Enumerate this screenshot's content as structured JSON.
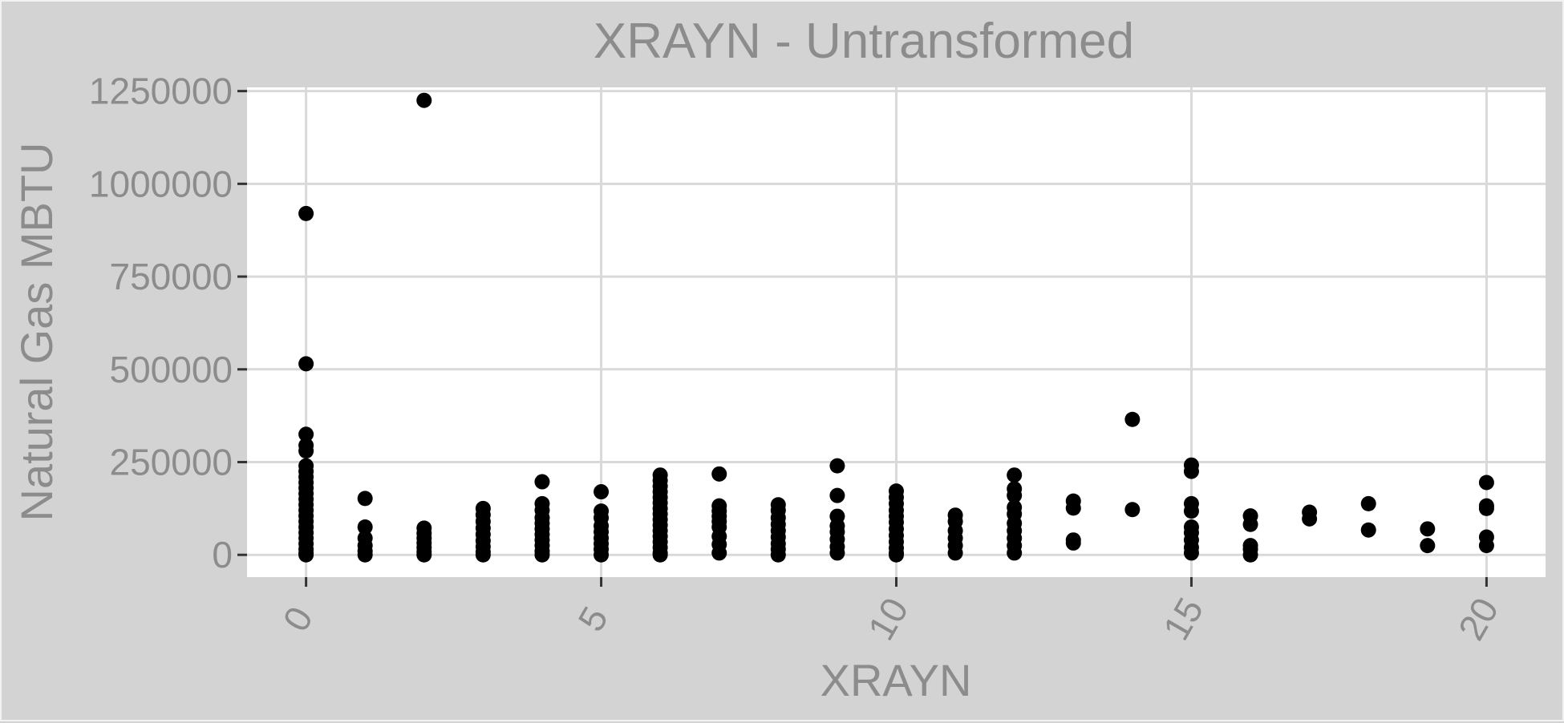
{
  "chart_data": {
    "type": "scatter",
    "title": "XRAYN - Untransformed",
    "xlabel": "XRAYN",
    "ylabel": "Natural Gas MBTU",
    "xlim": [
      -1,
      21
    ],
    "ylim": [
      -60000,
      1260000
    ],
    "xticks": [
      0,
      5,
      10,
      15,
      20
    ],
    "yticks": [
      0,
      250000,
      500000,
      750000,
      1000000,
      1250000
    ],
    "xtick_labels": [
      "0",
      "5",
      "10",
      "15",
      "20"
    ],
    "ytick_labels": [
      "0",
      "250000",
      "500000",
      "750000",
      "1000000",
      "1250000"
    ],
    "grid": true,
    "legend": "none",
    "colors": {
      "background": "#d3d3d3",
      "panel": "#ffffff",
      "grid": "#d9d9d9",
      "point": "#000000",
      "text": "#8c8c8c"
    },
    "points": [
      [
        0,
        920000
      ],
      [
        0,
        515000
      ],
      [
        0,
        325000
      ],
      [
        0,
        295000
      ],
      [
        0,
        280000
      ],
      [
        0,
        240000
      ],
      [
        0,
        225000
      ],
      [
        0,
        210000
      ],
      [
        0,
        195000
      ],
      [
        0,
        180000
      ],
      [
        0,
        165000
      ],
      [
        0,
        150000
      ],
      [
        0,
        135000
      ],
      [
        0,
        120000
      ],
      [
        0,
        105000
      ],
      [
        0,
        90000
      ],
      [
        0,
        75000
      ],
      [
        0,
        60000
      ],
      [
        0,
        45000
      ],
      [
        0,
        30000
      ],
      [
        0,
        15000
      ],
      [
        0,
        5000
      ],
      [
        0,
        0
      ],
      [
        1,
        152000
      ],
      [
        1,
        75000
      ],
      [
        1,
        45000
      ],
      [
        1,
        25000
      ],
      [
        1,
        10000
      ],
      [
        1,
        0
      ],
      [
        2,
        1225000
      ],
      [
        2,
        72000
      ],
      [
        2,
        58000
      ],
      [
        2,
        45000
      ],
      [
        2,
        32000
      ],
      [
        2,
        20000
      ],
      [
        2,
        8000
      ],
      [
        2,
        0
      ],
      [
        3,
        125000
      ],
      [
        3,
        108000
      ],
      [
        3,
        90000
      ],
      [
        3,
        72000
      ],
      [
        3,
        55000
      ],
      [
        3,
        38000
      ],
      [
        3,
        22000
      ],
      [
        3,
        8000
      ],
      [
        3,
        0
      ],
      [
        4,
        197000
      ],
      [
        4,
        138000
      ],
      [
        4,
        120000
      ],
      [
        4,
        100000
      ],
      [
        4,
        85000
      ],
      [
        4,
        70000
      ],
      [
        4,
        55000
      ],
      [
        4,
        40000
      ],
      [
        4,
        25000
      ],
      [
        4,
        10000
      ],
      [
        4,
        0
      ],
      [
        5,
        170000
      ],
      [
        5,
        118000
      ],
      [
        5,
        100000
      ],
      [
        5,
        78000
      ],
      [
        5,
        62000
      ],
      [
        5,
        45000
      ],
      [
        5,
        30000
      ],
      [
        5,
        15000
      ],
      [
        5,
        0
      ],
      [
        6,
        215000
      ],
      [
        6,
        200000
      ],
      [
        6,
        185000
      ],
      [
        6,
        170000
      ],
      [
        6,
        155000
      ],
      [
        6,
        140000
      ],
      [
        6,
        125000
      ],
      [
        6,
        110000
      ],
      [
        6,
        95000
      ],
      [
        6,
        80000
      ],
      [
        6,
        65000
      ],
      [
        6,
        50000
      ],
      [
        6,
        35000
      ],
      [
        6,
        20000
      ],
      [
        6,
        5000
      ],
      [
        6,
        0
      ],
      [
        7,
        218000
      ],
      [
        7,
        132000
      ],
      [
        7,
        118000
      ],
      [
        7,
        104000
      ],
      [
        7,
        90000
      ],
      [
        7,
        75000
      ],
      [
        7,
        50000
      ],
      [
        7,
        28000
      ],
      [
        7,
        5000
      ],
      [
        8,
        135000
      ],
      [
        8,
        120000
      ],
      [
        8,
        100000
      ],
      [
        8,
        82000
      ],
      [
        8,
        65000
      ],
      [
        8,
        48000
      ],
      [
        8,
        30000
      ],
      [
        8,
        15000
      ],
      [
        8,
        0
      ],
      [
        9,
        240000
      ],
      [
        9,
        160000
      ],
      [
        9,
        104000
      ],
      [
        9,
        78000
      ],
      [
        9,
        62000
      ],
      [
        9,
        42000
      ],
      [
        9,
        22000
      ],
      [
        9,
        5000
      ],
      [
        10,
        172000
      ],
      [
        10,
        155000
      ],
      [
        10,
        138000
      ],
      [
        10,
        120000
      ],
      [
        10,
        104000
      ],
      [
        10,
        88000
      ],
      [
        10,
        70000
      ],
      [
        10,
        52000
      ],
      [
        10,
        35000
      ],
      [
        10,
        18000
      ],
      [
        10,
        5000
      ],
      [
        10,
        0
      ],
      [
        11,
        107000
      ],
      [
        11,
        90000
      ],
      [
        11,
        65000
      ],
      [
        11,
        45000
      ],
      [
        11,
        25000
      ],
      [
        11,
        5000
      ],
      [
        12,
        215000
      ],
      [
        12,
        178000
      ],
      [
        12,
        160000
      ],
      [
        12,
        128000
      ],
      [
        12,
        110000
      ],
      [
        12,
        85000
      ],
      [
        12,
        65000
      ],
      [
        12,
        45000
      ],
      [
        12,
        25000
      ],
      [
        12,
        5000
      ],
      [
        13,
        145000
      ],
      [
        13,
        126000
      ],
      [
        13,
        40000
      ],
      [
        13,
        32000
      ],
      [
        14,
        365000
      ],
      [
        14,
        122000
      ],
      [
        15,
        242000
      ],
      [
        15,
        225000
      ],
      [
        15,
        138000
      ],
      [
        15,
        118000
      ],
      [
        15,
        75000
      ],
      [
        15,
        60000
      ],
      [
        15,
        40000
      ],
      [
        15,
        20000
      ],
      [
        15,
        5000
      ],
      [
        16,
        105000
      ],
      [
        16,
        82000
      ],
      [
        16,
        25000
      ],
      [
        16,
        15000
      ],
      [
        16,
        0
      ],
      [
        17,
        115000
      ],
      [
        17,
        97000
      ],
      [
        18,
        138000
      ],
      [
        18,
        67000
      ],
      [
        19,
        70000
      ],
      [
        19,
        25000
      ],
      [
        20,
        195000
      ],
      [
        20,
        132000
      ],
      [
        20,
        125000
      ],
      [
        20,
        48000
      ],
      [
        20,
        25000
      ]
    ]
  }
}
